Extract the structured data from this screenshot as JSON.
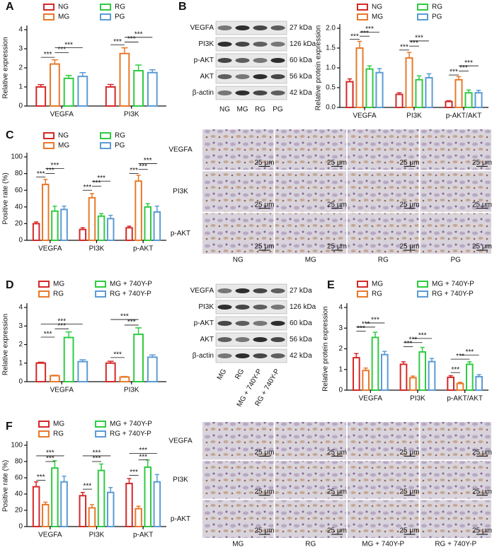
{
  "chart_data": [
    {
      "type": "bar",
      "panel": "A",
      "ylabel": "Relative expression",
      "categories": [
        "VEGFA",
        "PI3K"
      ],
      "ylim": [
        0,
        4
      ],
      "yticks": [
        0,
        1,
        2,
        3,
        4
      ],
      "series": [
        {
          "name": "NG",
          "color": "#d62728",
          "values": [
            1.0,
            1.0
          ],
          "errors": [
            0.12,
            0.13
          ]
        },
        {
          "name": "MG",
          "color": "#e8792a",
          "values": [
            2.2,
            2.75
          ],
          "errors": [
            0.22,
            0.3
          ]
        },
        {
          "name": "RG",
          "color": "#2ecc40",
          "values": [
            1.45,
            1.85
          ],
          "errors": [
            0.15,
            0.3
          ]
        },
        {
          "name": "PG",
          "color": "#5b9bd5",
          "values": [
            1.55,
            1.75
          ],
          "errors": [
            0.2,
            0.15
          ]
        }
      ],
      "annotations": [
        {
          "text": "***",
          "category": "VEGFA",
          "between": [
            "NG",
            "MG"
          ],
          "y": 2.55
        },
        {
          "text": "***",
          "category": "VEGFA",
          "between": [
            "MG",
            "RG"
          ],
          "y": 2.8
        },
        {
          "text": "***",
          "category": "VEGFA",
          "between": [
            "MG",
            "PG"
          ],
          "y": 3.05
        },
        {
          "text": "***",
          "category": "PI3K",
          "between": [
            "NG",
            "MG"
          ],
          "y": 3.2
        },
        {
          "text": "***",
          "category": "PI3K",
          "between": [
            "MG",
            "RG"
          ],
          "y": 3.35
        },
        {
          "text": "***",
          "category": "PI3K",
          "between": [
            "MG",
            "PG"
          ],
          "y": 3.6
        }
      ]
    },
    {
      "type": "bar",
      "panel": "B",
      "ylabel": "Relative protein expression",
      "categories": [
        "VEGFA",
        "PI3K",
        "p-AKT/AKT"
      ],
      "ylim": [
        0,
        2
      ],
      "yticks": [
        {
          "value": 0,
          "label": "0.0"
        },
        {
          "value": 0.5,
          "label": "0.5"
        },
        {
          "value": 1,
          "label": "1.0"
        },
        {
          "value": 1.5,
          "label": "1.5"
        },
        {
          "value": 2,
          "label": "2.0"
        }
      ],
      "series": [
        {
          "name": "NG",
          "color": "#d62728",
          "values": [
            0.65,
            0.33,
            0.15
          ],
          "errors": [
            0.07,
            0.04,
            0.02
          ]
        },
        {
          "name": "MG",
          "color": "#e8792a",
          "values": [
            1.5,
            1.25,
            0.7
          ],
          "errors": [
            0.17,
            0.14,
            0.08
          ]
        },
        {
          "name": "RG",
          "color": "#2ecc40",
          "values": [
            0.97,
            0.7,
            0.37
          ],
          "errors": [
            0.08,
            0.1,
            0.07
          ]
        },
        {
          "name": "PG",
          "color": "#5b9bd5",
          "values": [
            0.88,
            0.75,
            0.37
          ],
          "errors": [
            0.1,
            0.1,
            0.06
          ]
        }
      ],
      "annotations": [
        {
          "text": "***",
          "category": "VEGFA",
          "between": [
            "NG",
            "MG"
          ],
          "y": 1.72
        },
        {
          "text": "***",
          "category": "VEGFA",
          "between": [
            "MG",
            "RG"
          ],
          "y": 1.8
        },
        {
          "text": "***",
          "category": "VEGFA",
          "between": [
            "MG",
            "PG"
          ],
          "y": 1.9
        },
        {
          "text": "***",
          "category": "PI3K",
          "between": [
            "NG",
            "MG"
          ],
          "y": 1.45
        },
        {
          "text": "***",
          "category": "PI3K",
          "between": [
            "MG",
            "RG"
          ],
          "y": 1.55
        },
        {
          "text": "***",
          "category": "PI3K",
          "between": [
            "MG",
            "PG"
          ],
          "y": 1.68
        },
        {
          "text": "***",
          "category": "p-AKT/AKT",
          "between": [
            "NG",
            "MG"
          ],
          "y": 0.82
        },
        {
          "text": "***",
          "category": "p-AKT/AKT",
          "between": [
            "MG",
            "RG"
          ],
          "y": 0.92
        },
        {
          "text": "***",
          "category": "p-AKT/AKT",
          "between": [
            "MG",
            "PG"
          ],
          "y": 1.05
        }
      ]
    },
    {
      "type": "bar",
      "panel": "C",
      "ylabel": "Positive rate (%)",
      "categories": [
        "VEGFA",
        "PI3K",
        "p-AKT"
      ],
      "ylim": [
        0,
        100
      ],
      "yticks": [
        0,
        20,
        40,
        60,
        80,
        100
      ],
      "series": [
        {
          "name": "NG",
          "color": "#d62728",
          "values": [
            20,
            13,
            15
          ],
          "errors": [
            2,
            2,
            2
          ]
        },
        {
          "name": "MG",
          "color": "#e8792a",
          "values": [
            67,
            51,
            71
          ],
          "errors": [
            6,
            5,
            7
          ]
        },
        {
          "name": "RG",
          "color": "#2ecc40",
          "values": [
            35,
            29,
            40
          ],
          "errors": [
            6,
            3,
            4
          ]
        },
        {
          "name": "PG",
          "color": "#5b9bd5",
          "values": [
            37,
            26,
            34
          ],
          "errors": [
            4,
            4,
            7
          ]
        }
      ],
      "annotations": [
        {
          "text": "***",
          "category": "VEGFA",
          "between": [
            "NG",
            "MG"
          ],
          "y": 76
        },
        {
          "text": "***",
          "category": "VEGFA",
          "between": [
            "MG",
            "RG"
          ],
          "y": 80
        },
        {
          "text": "***",
          "category": "VEGFA",
          "between": [
            "MG",
            "PG"
          ],
          "y": 86
        },
        {
          "text": "***",
          "category": "PI3K",
          "between": [
            "NG",
            "MG"
          ],
          "y": 60
        },
        {
          "text": "***",
          "category": "PI3K",
          "between": [
            "MG",
            "RG"
          ],
          "y": 65
        },
        {
          "text": "***",
          "category": "PI3K",
          "between": [
            "MG",
            "PG"
          ],
          "y": 71
        },
        {
          "text": "***",
          "category": "p-AKT",
          "between": [
            "NG",
            "MG"
          ],
          "y": 80
        },
        {
          "text": "***",
          "category": "p-AKT",
          "between": [
            "MG",
            "RG"
          ],
          "y": 85
        },
        {
          "text": "***",
          "category": "p-AKT",
          "between": [
            "MG",
            "PG"
          ],
          "y": 92
        }
      ]
    },
    {
      "type": "bar",
      "panel": "D",
      "ylabel": "Relative expression",
      "categories": [
        "VEGFA",
        "PI3K"
      ],
      "ylim": [
        0,
        4
      ],
      "yticks": [
        0,
        1,
        2,
        3,
        4
      ],
      "series": [
        {
          "name": "MG",
          "color": "#d62728",
          "values": [
            1.0,
            1.0
          ],
          "errors": [
            0.05,
            0.1
          ]
        },
        {
          "name": "RG",
          "color": "#e8792a",
          "values": [
            0.32,
            0.25
          ],
          "errors": [
            0.03,
            0.03
          ]
        },
        {
          "name": "MG + 740Y-P",
          "color": "#2ecc40",
          "values": [
            2.38,
            2.55
          ],
          "errors": [
            0.3,
            0.35
          ]
        },
        {
          "name": "RG + 740Y-P",
          "color": "#5b9bd5",
          "values": [
            1.08,
            1.32
          ],
          "errors": [
            0.1,
            0.12
          ]
        }
      ],
      "annotations": [
        {
          "text": "***",
          "category": "VEGFA",
          "between": [
            "MG",
            "RG"
          ],
          "y": 2.4
        },
        {
          "text": "***",
          "category": "VEGFA",
          "between": [
            "RG",
            "MG + 740Y-P"
          ],
          "y": 2.85
        },
        {
          "text": "***",
          "category": "VEGFA",
          "between": [
            "MG",
            "RG + 740Y-P"
          ],
          "y": 3.1
        },
        {
          "text": "***",
          "category": "PI3K",
          "between": [
            "MG",
            "RG"
          ],
          "y": 1.3
        },
        {
          "text": "***",
          "category": "PI3K",
          "between": [
            "RG",
            "MG + 740Y-P"
          ],
          "y": 3.05
        },
        {
          "text": "***",
          "category": "PI3K",
          "between": [
            "MG",
            "MG + 740Y-P"
          ],
          "y": 3.35
        }
      ]
    },
    {
      "type": "bar",
      "panel": "E",
      "ylabel": "Relative protein expression",
      "categories": [
        "VEGFA",
        "PI3K",
        "p-AKT/AKT"
      ],
      "ylim": [
        0,
        4
      ],
      "yticks": [
        0,
        1,
        2,
        3,
        4
      ],
      "series": [
        {
          "name": "MG",
          "color": "#d62728",
          "values": [
            1.57,
            1.25,
            0.62
          ],
          "errors": [
            0.2,
            0.12,
            0.08
          ]
        },
        {
          "name": "RG",
          "color": "#e8792a",
          "values": [
            0.95,
            0.6,
            0.32
          ],
          "errors": [
            0.12,
            0.08,
            0.06
          ]
        },
        {
          "name": "MG + 740Y-P",
          "color": "#2ecc40",
          "values": [
            2.55,
            1.85,
            1.25
          ],
          "errors": [
            0.25,
            0.22,
            0.12
          ]
        },
        {
          "name": "RG + 740Y-P",
          "color": "#5b9bd5",
          "values": [
            1.72,
            1.38,
            0.65
          ],
          "errors": [
            0.15,
            0.15,
            0.1
          ]
        }
      ],
      "annotations": [
        {
          "text": "***",
          "category": "VEGFA",
          "between": [
            "MG",
            "RG"
          ],
          "y": 2.85
        },
        {
          "text": "***",
          "category": "VEGFA",
          "between": [
            "MG",
            "MG + 740Y-P"
          ],
          "y": 3.05
        },
        {
          "text": "***",
          "category": "VEGFA",
          "between": [
            "RG",
            "RG + 740Y-P"
          ],
          "y": 3.25
        },
        {
          "text": "***",
          "category": "PI3K",
          "between": [
            "MG",
            "RG"
          ],
          "y": 2.1
        },
        {
          "text": "***",
          "category": "PI3K",
          "between": [
            "MG",
            "MG + 740Y-P"
          ],
          "y": 2.3
        },
        {
          "text": "***",
          "category": "PI3K",
          "between": [
            "RG",
            "RG + 740Y-P"
          ],
          "y": 2.5
        },
        {
          "text": "***",
          "category": "p-AKT/AKT",
          "between": [
            "MG",
            "RG"
          ],
          "y": 0.85
        },
        {
          "text": "***",
          "category": "p-AKT/AKT",
          "between": [
            "MG",
            "MG + 740Y-P"
          ],
          "y": 1.5
        },
        {
          "text": "***",
          "category": "p-AKT/AKT",
          "between": [
            "RG",
            "RG + 740Y-P"
          ],
          "y": 1.7
        }
      ]
    },
    {
      "type": "bar",
      "panel": "F",
      "ylabel": "Positive rate (%)",
      "categories": [
        "VEGFA",
        "PI3K",
        "p-AKT"
      ],
      "ylim": [
        0,
        100
      ],
      "yticks": [
        0,
        20,
        40,
        60,
        80,
        100
      ],
      "series": [
        {
          "name": "MG",
          "color": "#d62728",
          "values": [
            49,
            38,
            53
          ],
          "errors": [
            6,
            4,
            6
          ]
        },
        {
          "name": "RG",
          "color": "#e8792a",
          "values": [
            27,
            23,
            22
          ],
          "errors": [
            3,
            4,
            3
          ]
        },
        {
          "name": "MG + 740Y-P",
          "color": "#2ecc40",
          "values": [
            72,
            69,
            73
          ],
          "errors": [
            9,
            8,
            9
          ]
        },
        {
          "name": "RG + 740Y-P",
          "color": "#5b9bd5",
          "values": [
            55,
            42,
            55
          ],
          "errors": [
            7,
            6,
            9
          ]
        }
      ],
      "annotations": [
        {
          "text": "***",
          "category": "VEGFA",
          "between": [
            "MG",
            "RG"
          ],
          "y": 57
        },
        {
          "text": "***",
          "category": "VEGFA",
          "between": [
            "RG",
            "MG + 740Y-P"
          ],
          "y": 80
        },
        {
          "text": "***",
          "category": "VEGFA",
          "between": [
            "MG",
            "RG + 740Y-P"
          ],
          "y": 87
        },
        {
          "text": "***",
          "category": "PI3K",
          "between": [
            "MG",
            "RG"
          ],
          "y": 46
        },
        {
          "text": "***",
          "category": "PI3K",
          "between": [
            "RG",
            "MG + 740Y-P"
          ],
          "y": 80
        },
        {
          "text": "***",
          "category": "PI3K",
          "between": [
            "MG",
            "RG + 740Y-P"
          ],
          "y": 87
        },
        {
          "text": "***",
          "category": "p-AKT",
          "between": [
            "MG",
            "RG"
          ],
          "y": 63
        },
        {
          "text": "***",
          "category": "p-AKT",
          "between": [
            "RG",
            "MG + 740Y-P"
          ],
          "y": 82
        },
        {
          "text": "***",
          "category": "p-AKT",
          "between": [
            "MG",
            "RG + 740Y-P"
          ],
          "y": 90
        }
      ]
    }
  ],
  "blots": [
    {
      "proteins": [
        "VEGFA",
        "PI3K",
        "p-AKT",
        "AKT",
        "β-actin"
      ],
      "sizes": [
        "27 kDa",
        "126 kDa",
        "60 kDa",
        "56 kDa",
        "42 kDa"
      ],
      "lanes": [
        "NG",
        "MG",
        "RG",
        "PG"
      ]
    },
    {
      "proteins": [
        "VEGFA",
        "PI3K",
        "p-AKT",
        "AKT",
        "β-actin"
      ],
      "sizes": [
        "27 kDa",
        "126 kDa",
        "60 kDa",
        "56 kDa",
        "42 kDa"
      ],
      "lanes": [
        "MG",
        "RG",
        "MG + 740Y-P",
        "RG + 740Y-P"
      ]
    }
  ],
  "ihc": [
    {
      "rows": [
        "VEGFA",
        "PI3K",
        "p-AKT"
      ],
      "columns": [
        "NG",
        "MG",
        "RG",
        "PG"
      ],
      "scale": "25 μm"
    },
    {
      "rows": [
        "VEGFA",
        "PI3K",
        "p-AKT"
      ],
      "columns": [
        "MG",
        "RG",
        "MG + 740Y-P",
        "RG + 740Y-P"
      ],
      "scale": "25 μm"
    }
  ]
}
